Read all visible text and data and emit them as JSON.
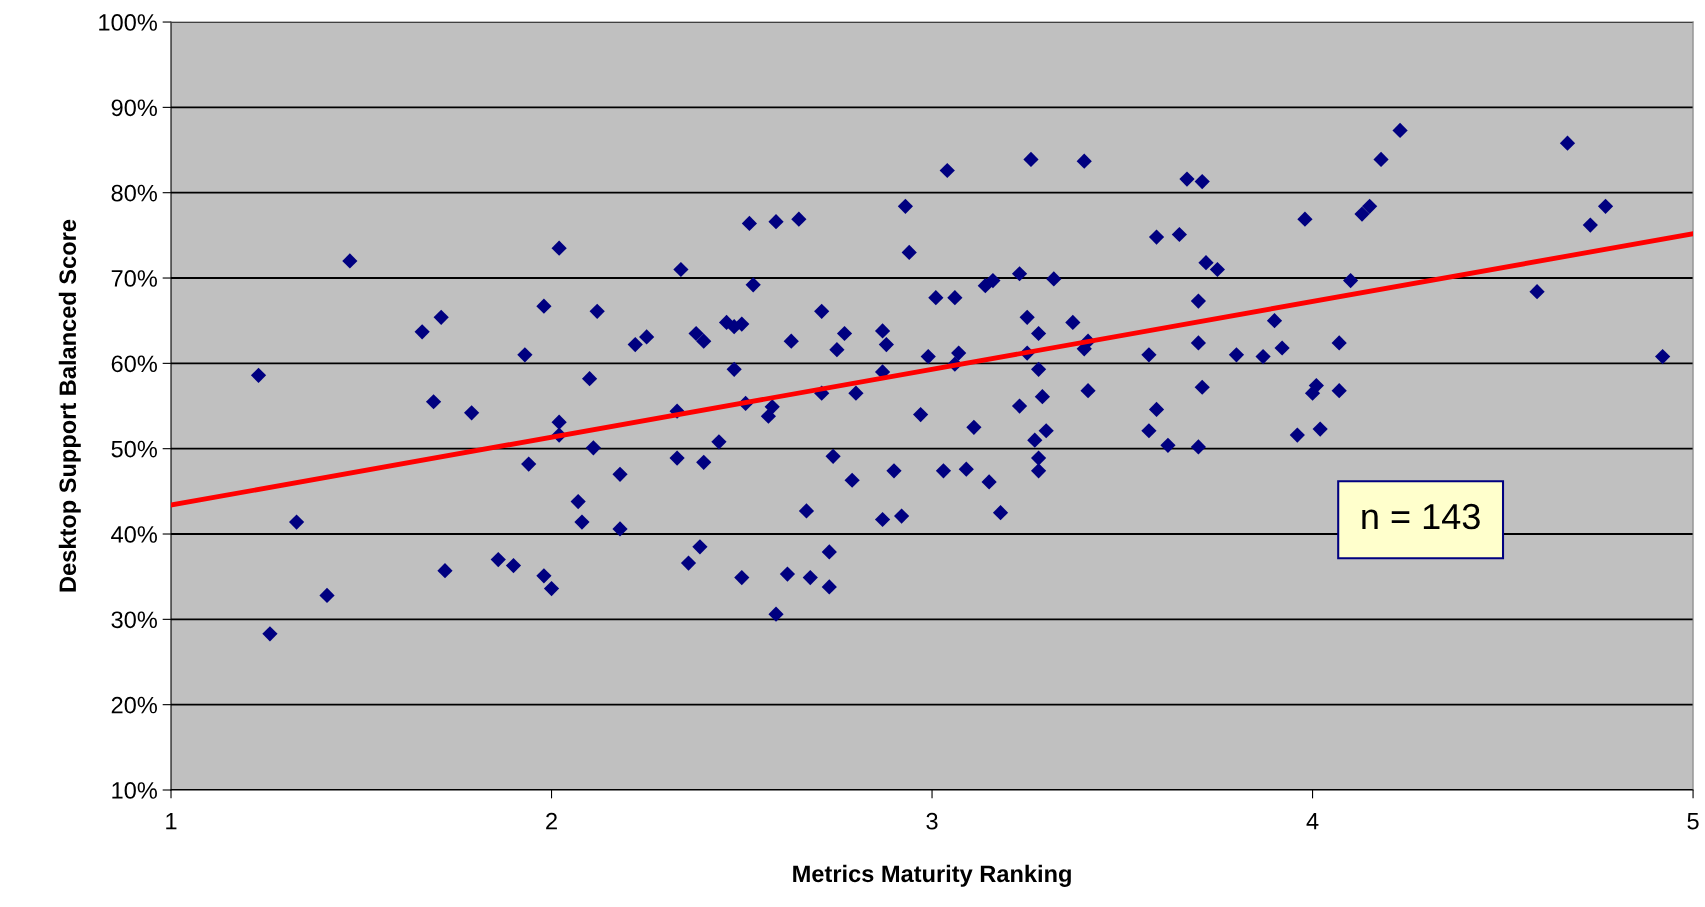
{
  "chart_data": {
    "type": "scatter",
    "xlabel": "Metrics Maturity Ranking",
    "ylabel": "Desktop Support Balanced Score",
    "xlim": [
      1,
      5
    ],
    "xticks": [
      1,
      2,
      3,
      4,
      5
    ],
    "ylim": [
      10,
      100
    ],
    "yticks": [
      {
        "value": 10,
        "label": "10%"
      },
      {
        "value": 20,
        "label": "20%"
      },
      {
        "value": 30,
        "label": "30%"
      },
      {
        "value": 40,
        "label": "40%"
      },
      {
        "value": 50,
        "label": "50%"
      },
      {
        "value": 60,
        "label": "60%"
      },
      {
        "value": 70,
        "label": "70%"
      },
      {
        "value": 80,
        "label": "80%"
      },
      {
        "value": 90,
        "label": "90%"
      },
      {
        "value": 100,
        "label": "100%"
      }
    ],
    "grid": "y",
    "legend": false,
    "annotations": [
      "n = 143"
    ],
    "series": [
      {
        "marker": "diamond",
        "color": "#000080",
        "x": [
          1.23,
          1.26,
          1.33,
          1.41,
          1.47,
          1.66,
          1.71,
          1.69,
          1.72,
          1.79,
          1.86,
          1.9,
          1.93,
          1.94,
          1.98,
          1.98,
          2.0,
          2.02,
          2.02,
          2.02,
          2.07,
          2.08,
          2.1,
          2.11,
          2.12,
          2.18,
          2.18,
          2.22,
          2.25,
          2.33,
          2.33,
          2.34,
          2.36,
          2.39,
          2.38,
          2.4,
          2.4,
          2.44,
          2.46,
          2.48,
          2.5,
          2.48,
          2.5,
          2.51,
          2.52,
          2.53,
          2.57,
          2.58,
          2.59,
          2.59,
          2.62,
          2.63,
          2.65,
          2.67,
          2.68,
          2.71,
          2.71,
          2.73,
          2.73,
          2.74,
          2.75,
          2.77,
          2.79,
          2.8,
          2.87,
          2.88,
          2.87,
          2.87,
          2.9,
          2.92,
          2.93,
          2.94,
          2.97,
          2.99,
          3.01,
          3.03,
          3.04,
          3.06,
          3.07,
          3.06,
          3.09,
          3.11,
          3.14,
          3.16,
          3.15,
          3.18,
          3.23,
          3.23,
          3.25,
          3.25,
          3.26,
          3.27,
          3.28,
          3.28,
          3.28,
          3.28,
          3.29,
          3.3,
          3.32,
          3.37,
          3.4,
          3.4,
          3.41,
          3.41,
          3.57,
          3.57,
          3.59,
          3.59,
          3.62,
          3.65,
          3.67,
          3.71,
          3.72,
          3.75,
          3.7,
          3.7,
          3.71,
          3.7,
          3.8,
          3.87,
          3.9,
          3.92,
          3.96,
          3.98,
          4.0,
          4.01,
          4.02,
          4.07,
          4.07,
          4.1,
          4.13,
          4.15,
          4.18,
          4.23,
          4.59,
          4.67,
          4.73,
          4.77,
          4.92
        ],
        "values": [
          58.6,
          28.3,
          41.4,
          32.8,
          72.0,
          63.7,
          65.4,
          55.5,
          35.7,
          54.2,
          37.0,
          36.3,
          61.0,
          48.2,
          66.7,
          35.1,
          33.6,
          73.5,
          53.1,
          51.6,
          43.8,
          41.4,
          58.2,
          50.1,
          66.1,
          47.0,
          40.6,
          62.2,
          63.1,
          54.4,
          48.9,
          71.0,
          36.6,
          38.5,
          63.5,
          62.6,
          48.4,
          50.8,
          64.8,
          64.3,
          64.6,
          59.3,
          34.9,
          55.3,
          76.4,
          69.2,
          53.8,
          54.9,
          30.6,
          76.6,
          35.3,
          62.6,
          76.9,
          42.7,
          34.9,
          66.1,
          56.5,
          33.8,
          37.9,
          49.1,
          61.6,
          63.5,
          46.3,
          56.5,
          63.8,
          62.2,
          59.0,
          41.7,
          47.4,
          42.1,
          78.4,
          73.0,
          54.0,
          60.8,
          67.7,
          47.4,
          82.6,
          67.7,
          61.2,
          59.9,
          47.6,
          52.5,
          69.1,
          69.7,
          46.1,
          42.5,
          70.5,
          55.0,
          61.2,
          65.4,
          83.9,
          51.0,
          48.9,
          47.4,
          59.3,
          63.5,
          56.1,
          52.1,
          69.9,
          64.8,
          83.7,
          61.7,
          62.6,
          56.8,
          61.0,
          52.1,
          54.6,
          74.8,
          50.4,
          75.1,
          81.6,
          81.3,
          71.8,
          71.0,
          67.3,
          62.4,
          57.2,
          50.2,
          61.0,
          60.8,
          65.0,
          61.8,
          51.6,
          76.9,
          56.5,
          57.4,
          52.3,
          62.4,
          56.8,
          69.7,
          77.5,
          78.4,
          83.9,
          87.3,
          68.4,
          85.8,
          76.2,
          78.4,
          60.8
        ]
      },
      {
        "type": "line",
        "color": "#ff0000",
        "x": [
          1,
          5
        ],
        "values": [
          43.4,
          75.2
        ]
      }
    ]
  }
}
